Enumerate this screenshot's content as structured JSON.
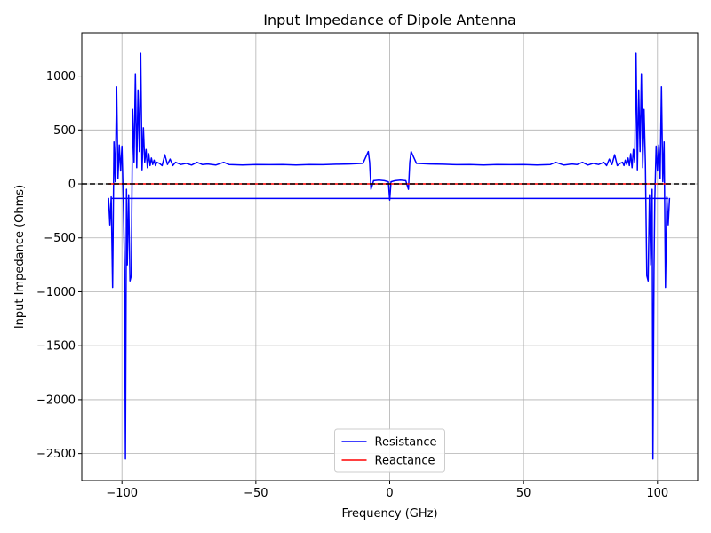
{
  "chart_data": {
    "type": "line",
    "title": "Input Impedance of Dipole Antenna",
    "xlabel": "Frequency (GHz)",
    "ylabel": "Input Impedance (Ohms)",
    "xlim": [
      -115,
      115
    ],
    "ylim": [
      -2750,
      1400
    ],
    "xticks": [
      -100,
      -50,
      0,
      50,
      100
    ],
    "xtick_labels": [
      "−100",
      "−50",
      "0",
      "50",
      "100"
    ],
    "yticks": [
      -2500,
      -2000,
      -1500,
      -1000,
      -500,
      0,
      500,
      1000
    ],
    "ytick_labels": [
      "−2500",
      "−2000",
      "−1500",
      "−1000",
      "−500",
      "0",
      "500",
      "1000"
    ],
    "grid": true,
    "legend_position": "lower-center",
    "reference_line": {
      "y": 0,
      "style": "dashed",
      "color": "#000000"
    },
    "series": [
      {
        "name": "Resistance",
        "color": "#0000ff",
        "x": [
          -105,
          -104.5,
          -104,
          -103.5,
          -103,
          -102.5,
          -102,
          -101.5,
          -101,
          -100.5,
          -100,
          -99.5,
          -99,
          -98.7,
          -98.3,
          -98,
          -97.5,
          -97,
          -96.5,
          -96,
          -95.5,
          -95,
          -94.5,
          -94,
          -93.5,
          -93,
          -92.5,
          -92,
          -91.5,
          -91,
          -90.5,
          -90,
          -89.5,
          -89,
          -88.5,
          -88,
          -87.5,
          -87,
          -86,
          -85,
          -84,
          -83,
          -82,
          -81,
          -80,
          -78,
          -76,
          -74,
          -72,
          -70,
          -68,
          -65,
          -62,
          -60,
          -55,
          -50,
          -45,
          -40,
          -35,
          -30,
          -25,
          -20,
          -15,
          -10,
          -8,
          -7.5,
          -7,
          -6,
          -4,
          -2,
          -0.5,
          0,
          0.5,
          2,
          4,
          6,
          7,
          7.5,
          8,
          10,
          15,
          20,
          25,
          30,
          35,
          40,
          45,
          50,
          55,
          60,
          62,
          65,
          68,
          70,
          72,
          74,
          76,
          78,
          80,
          81,
          82,
          83,
          84,
          85,
          86,
          87,
          87.5,
          88,
          88.5,
          89,
          89.5,
          90,
          90.5,
          91,
          91.5,
          92,
          92.5,
          93,
          93.5,
          94,
          94.5,
          95,
          95.5,
          96,
          96.5,
          97,
          97.5,
          98,
          98.3,
          98.7,
          99,
          99.5,
          100,
          100.5,
          101,
          101.5,
          102,
          102.5,
          103,
          103.5,
          104,
          104.5
        ],
        "y": [
          -130,
          -380,
          -120,
          -960,
          390,
          20,
          900,
          50,
          360,
          120,
          350,
          -150,
          -800,
          -2550,
          -50,
          -750,
          -100,
          -900,
          -850,
          690,
          200,
          1020,
          150,
          870,
          300,
          1210,
          130,
          520,
          200,
          320,
          150,
          280,
          170,
          240,
          180,
          220,
          170,
          200,
          190,
          170,
          270,
          180,
          230,
          170,
          200,
          180,
          190,
          175,
          200,
          180,
          185,
          175,
          200,
          180,
          175,
          180,
          178,
          180,
          175,
          180,
          178,
          182,
          185,
          190,
          300,
          200,
          -50,
          30,
          35,
          30,
          20,
          -150,
          20,
          30,
          35,
          30,
          -50,
          200,
          300,
          190,
          185,
          182,
          178,
          180,
          175,
          180,
          178,
          180,
          175,
          180,
          200,
          175,
          185,
          180,
          200,
          175,
          190,
          180,
          200,
          170,
          230,
          180,
          270,
          170,
          190,
          200,
          170,
          220,
          180,
          240,
          170,
          280,
          150,
          320,
          200,
          1210,
          130,
          870,
          300,
          1020,
          150,
          690,
          200,
          -850,
          -900,
          -100,
          -750,
          -50,
          -2550,
          -800,
          -150,
          350,
          120,
          360,
          50,
          900,
          20,
          390,
          -960,
          -120,
          -380,
          -130
        ]
      },
      {
        "name": "Reactance",
        "color": "#ff0000",
        "x": [
          -105,
          105
        ],
        "y": [
          0,
          0
        ]
      }
    ],
    "extra_lines": [
      {
        "series": "Resistance",
        "x": [
          -104,
          104
        ],
        "y": [
          -135,
          -135
        ]
      }
    ]
  }
}
